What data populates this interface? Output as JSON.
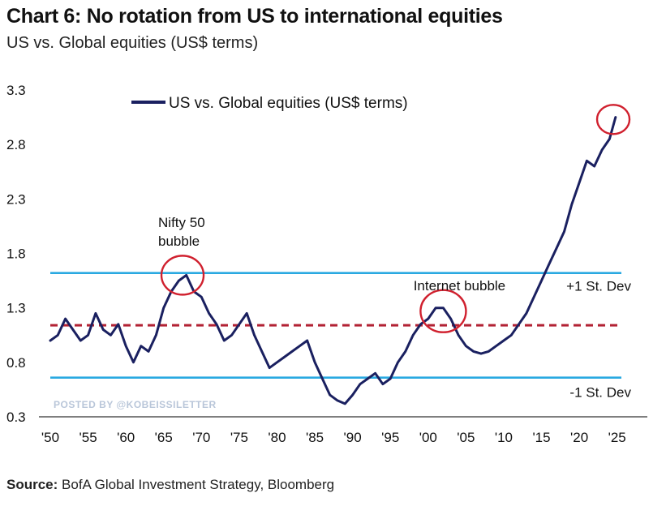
{
  "header": {
    "title": "Chart 6: No rotation from US to international equities",
    "subtitle": "US vs. Global equities (US$ terms)"
  },
  "watermark": "POSTED BY @KOBEISSILETTER",
  "source": {
    "label": "Source:",
    "text": "BofA Global Investment Strategy, Bloomberg"
  },
  "chart_data": {
    "type": "line",
    "title": "",
    "xlabel": "",
    "ylabel": "",
    "xlim": [
      1950,
      2026
    ],
    "ylim": [
      0.3,
      3.3
    ],
    "y_ticks": [
      "3.3",
      "2.8",
      "2.3",
      "1.8",
      "1.3",
      "0.8",
      "0.3"
    ],
    "y_tick_values": [
      3.3,
      2.8,
      2.3,
      1.8,
      1.3,
      0.8,
      0.3
    ],
    "x_ticks": [
      "'50",
      "'55",
      "'60",
      "'65",
      "'70",
      "'75",
      "'80",
      "'85",
      "'90",
      "'95",
      "'00",
      "'05",
      "'10",
      "'15",
      "'20",
      "'25"
    ],
    "x_tick_values": [
      1950,
      1955,
      1960,
      1965,
      1970,
      1975,
      1980,
      1985,
      1990,
      1995,
      2000,
      2005,
      2010,
      2015,
      2020,
      2025
    ],
    "grid": false,
    "legend": {
      "position": "top-left",
      "entries": [
        "US vs. Global equities (US$ terms)"
      ]
    },
    "series": [
      {
        "name": "US vs. Global equities (US$ terms)",
        "color": "#1a2060",
        "x": [
          1950,
          1951,
          1952,
          1953,
          1954,
          1955,
          1956,
          1957,
          1958,
          1959,
          1960,
          1961,
          1962,
          1963,
          1964,
          1965,
          1966,
          1967,
          1968,
          1969,
          1970,
          1971,
          1972,
          1973,
          1974,
          1975,
          1976,
          1977,
          1978,
          1979,
          1980,
          1981,
          1982,
          1983,
          1984,
          1985,
          1986,
          1987,
          1988,
          1989,
          1990,
          1991,
          1992,
          1993,
          1994,
          1995,
          1996,
          1997,
          1998,
          1999,
          2000,
          2001,
          2002,
          2003,
          2004,
          2005,
          2006,
          2007,
          2008,
          2009,
          2010,
          2011,
          2012,
          2013,
          2014,
          2015,
          2016,
          2017,
          2018,
          2019,
          2020,
          2021,
          2022,
          2023,
          2024,
          2024.8
        ],
        "y": [
          1.0,
          1.05,
          1.2,
          1.1,
          1.0,
          1.05,
          1.25,
          1.1,
          1.05,
          1.15,
          0.95,
          0.8,
          0.95,
          0.9,
          1.05,
          1.3,
          1.45,
          1.55,
          1.6,
          1.45,
          1.4,
          1.25,
          1.15,
          1.0,
          1.05,
          1.15,
          1.25,
          1.05,
          0.9,
          0.75,
          0.8,
          0.85,
          0.9,
          0.95,
          1.0,
          0.8,
          0.65,
          0.5,
          0.45,
          0.42,
          0.5,
          0.6,
          0.65,
          0.7,
          0.6,
          0.65,
          0.8,
          0.9,
          1.05,
          1.15,
          1.2,
          1.3,
          1.3,
          1.2,
          1.05,
          0.95,
          0.9,
          0.88,
          0.9,
          0.95,
          1.0,
          1.05,
          1.15,
          1.25,
          1.4,
          1.55,
          1.7,
          1.85,
          2.0,
          2.25,
          2.45,
          2.65,
          2.6,
          2.75,
          2.85,
          3.05
        ]
      }
    ],
    "reference_lines": [
      {
        "label": "+1 St. Dev",
        "value": 1.62,
        "style": "solid",
        "color": "#29a9e1"
      },
      {
        "label": "",
        "value": 1.14,
        "style": "dashed",
        "color": "#b22234"
      },
      {
        "label": "-1 St. Dev",
        "value": 0.66,
        "style": "solid",
        "color": "#29a9e1"
      }
    ],
    "annotations": [
      {
        "text": "Nifty 50 bubble",
        "x": 1967.5,
        "y": 1.6
      },
      {
        "text": "Internet bubble",
        "x": 2002,
        "y": 1.27
      },
      {
        "text": "",
        "x": 2024.5,
        "y": 3.03
      }
    ]
  }
}
